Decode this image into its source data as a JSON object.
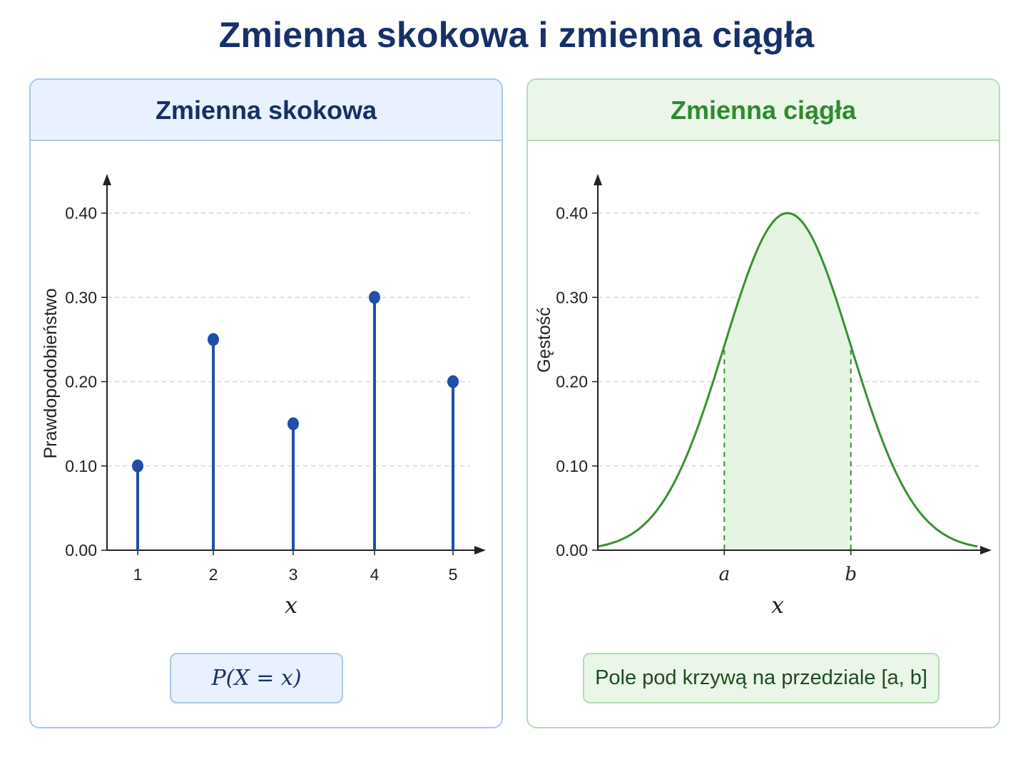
{
  "title": "Zmienna skokowa i zmienna ciągła",
  "left_panel": {
    "header": "Zmienna skokowa",
    "formula": "P(X = x)"
  },
  "right_panel": {
    "header": "Zmienna ciągła",
    "formula": "Pole pod krzywą na przedziale [a, b]"
  },
  "colors": {
    "title": "#17306a",
    "stem": "#1f4fa8",
    "curve": "#3a8f33",
    "shade": "#e6f4e4",
    "grid": "#cfcfcf"
  },
  "chart_data": [
    {
      "type": "bar",
      "style": "stem",
      "categories": [
        "1",
        "2",
        "3",
        "4",
        "5"
      ],
      "values": [
        0.1,
        0.25,
        0.15,
        0.3,
        0.2
      ],
      "xlabel": "x",
      "ylabel": "Prawdopodobieństwo",
      "ylim": [
        0,
        0.4
      ],
      "yticks": [
        "0.00",
        "0.10",
        "0.20",
        "0.30",
        "0.40"
      ],
      "grid": true
    },
    {
      "type": "area",
      "description_of_curve": "normal density",
      "xlabel": "x",
      "ylabel": "Gęstość",
      "ylim": [
        0,
        0.4
      ],
      "yticks": [
        "0.00",
        "0.10",
        "0.20",
        "0.30",
        "0.40"
      ],
      "xmarks": [
        "a",
        "b"
      ],
      "peak": 0.4,
      "mean": 0,
      "sd": 1,
      "xlim": [
        -3,
        3
      ],
      "shaded_interval": [
        -1,
        1
      ],
      "grid": true
    }
  ]
}
